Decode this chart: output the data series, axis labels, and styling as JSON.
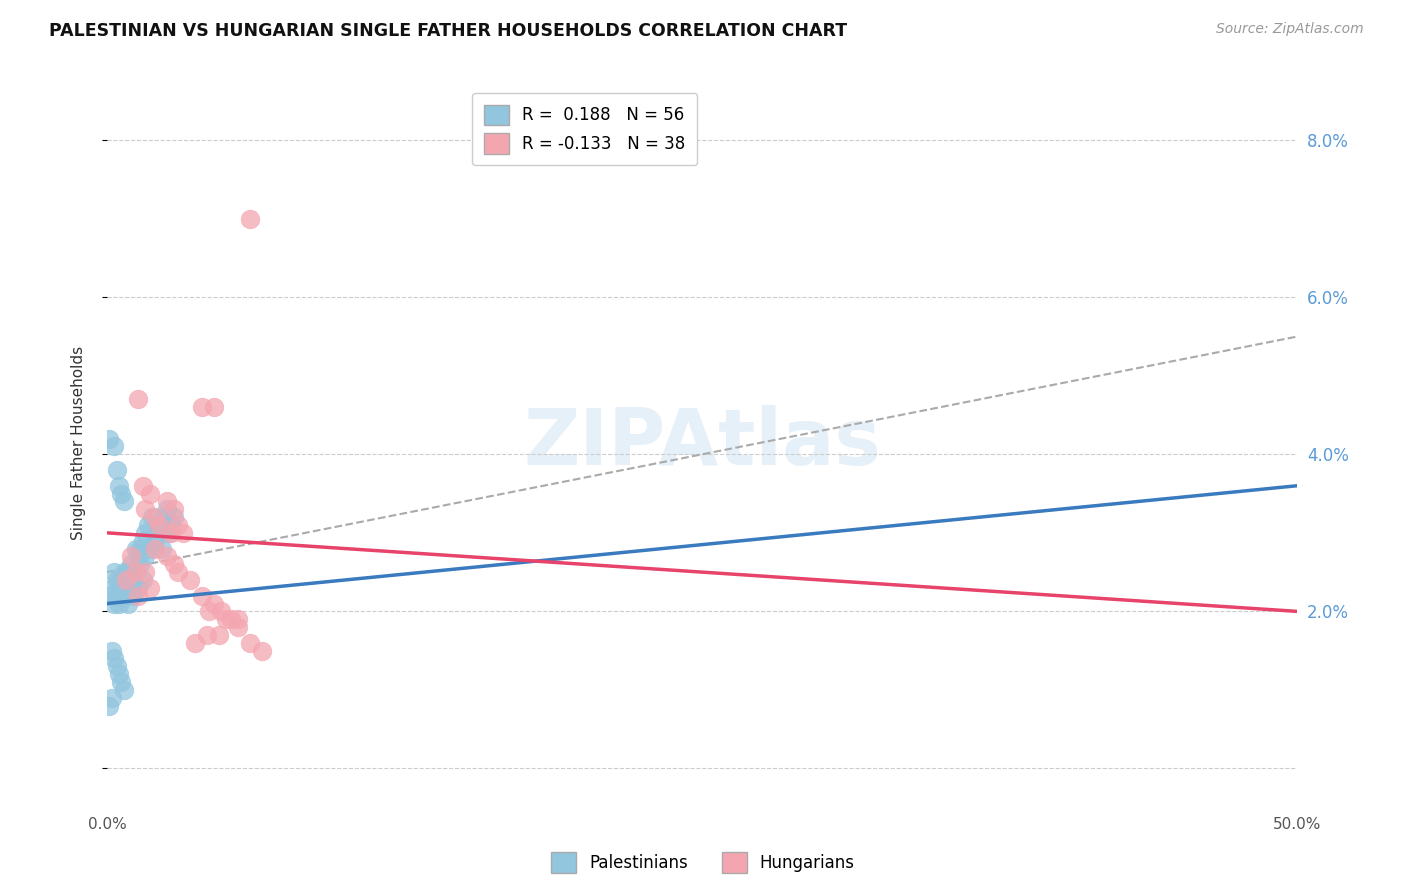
{
  "title": "PALESTINIAN VS HUNGARIAN SINGLE FATHER HOUSEHOLDS CORRELATION CHART",
  "source": "Source: ZipAtlas.com",
  "ylabel": "Single Father Households",
  "y_ticks": [
    0.0,
    0.02,
    0.04,
    0.06,
    0.08
  ],
  "y_tick_labels": [
    "",
    "2.0%",
    "4.0%",
    "6.0%",
    "8.0%"
  ],
  "xlim": [
    0.0,
    0.5
  ],
  "ylim": [
    -0.005,
    0.088
  ],
  "legend_blue_r": "R =  0.188",
  "legend_blue_n": "N = 56",
  "legend_pink_r": "R = -0.133",
  "legend_pink_n": "N = 38",
  "blue_color": "#92c5de",
  "pink_color": "#f4a6b0",
  "blue_line_color": "#3a7abf",
  "pink_line_color": "#e8436a",
  "dashed_line_color": "#aaaaaa",
  "blue_scatter": [
    [
      0.001,
      0.022
    ],
    [
      0.002,
      0.023
    ],
    [
      0.003,
      0.021
    ],
    [
      0.003,
      0.025
    ],
    [
      0.004,
      0.022
    ],
    [
      0.004,
      0.024
    ],
    [
      0.005,
      0.023
    ],
    [
      0.005,
      0.021
    ],
    [
      0.006,
      0.024
    ],
    [
      0.006,
      0.022
    ],
    [
      0.007,
      0.025
    ],
    [
      0.007,
      0.023
    ],
    [
      0.008,
      0.024
    ],
    [
      0.008,
      0.022
    ],
    [
      0.009,
      0.025
    ],
    [
      0.009,
      0.021
    ],
    [
      0.01,
      0.026
    ],
    [
      0.01,
      0.023
    ],
    [
      0.011,
      0.024
    ],
    [
      0.011,
      0.022
    ],
    [
      0.012,
      0.028
    ],
    [
      0.012,
      0.025
    ],
    [
      0.013,
      0.027
    ],
    [
      0.013,
      0.023
    ],
    [
      0.014,
      0.028
    ],
    [
      0.014,
      0.026
    ],
    [
      0.015,
      0.029
    ],
    [
      0.015,
      0.024
    ],
    [
      0.016,
      0.03
    ],
    [
      0.016,
      0.027
    ],
    [
      0.017,
      0.031
    ],
    [
      0.018,
      0.028
    ],
    [
      0.019,
      0.032
    ],
    [
      0.02,
      0.029
    ],
    [
      0.021,
      0.03
    ],
    [
      0.022,
      0.031
    ],
    [
      0.023,
      0.028
    ],
    [
      0.024,
      0.032
    ],
    [
      0.025,
      0.033
    ],
    [
      0.026,
      0.03
    ],
    [
      0.027,
      0.031
    ],
    [
      0.028,
      0.032
    ],
    [
      0.003,
      0.041
    ],
    [
      0.001,
      0.042
    ],
    [
      0.004,
      0.038
    ],
    [
      0.005,
      0.036
    ],
    [
      0.006,
      0.035
    ],
    [
      0.007,
      0.034
    ],
    [
      0.002,
      0.015
    ],
    [
      0.003,
      0.014
    ],
    [
      0.004,
      0.013
    ],
    [
      0.005,
      0.012
    ],
    [
      0.006,
      0.011
    ],
    [
      0.007,
      0.01
    ],
    [
      0.001,
      0.008
    ],
    [
      0.002,
      0.009
    ]
  ],
  "pink_scatter": [
    [
      0.01,
      0.027
    ],
    [
      0.012,
      0.025
    ],
    [
      0.015,
      0.036
    ],
    [
      0.016,
      0.033
    ],
    [
      0.018,
      0.035
    ],
    [
      0.02,
      0.032
    ],
    [
      0.022,
      0.031
    ],
    [
      0.025,
      0.034
    ],
    [
      0.027,
      0.03
    ],
    [
      0.028,
      0.033
    ],
    [
      0.03,
      0.031
    ],
    [
      0.032,
      0.03
    ],
    [
      0.013,
      0.047
    ],
    [
      0.045,
      0.046
    ],
    [
      0.06,
      0.07
    ],
    [
      0.04,
      0.046
    ],
    [
      0.02,
      0.028
    ],
    [
      0.025,
      0.027
    ],
    [
      0.028,
      0.026
    ],
    [
      0.03,
      0.025
    ],
    [
      0.035,
      0.024
    ],
    [
      0.04,
      0.022
    ],
    [
      0.045,
      0.021
    ],
    [
      0.05,
      0.019
    ],
    [
      0.055,
      0.018
    ],
    [
      0.008,
      0.024
    ],
    [
      0.013,
      0.022
    ],
    [
      0.016,
      0.025
    ],
    [
      0.018,
      0.023
    ],
    [
      0.043,
      0.02
    ],
    [
      0.055,
      0.019
    ],
    [
      0.042,
      0.017
    ],
    [
      0.06,
      0.016
    ],
    [
      0.065,
      0.015
    ],
    [
      0.037,
      0.016
    ],
    [
      0.047,
      0.017
    ],
    [
      0.048,
      0.02
    ],
    [
      0.052,
      0.019
    ]
  ],
  "blue_regline_x": [
    0.0,
    0.5
  ],
  "blue_regline_y": [
    0.021,
    0.036
  ],
  "pink_regline_x": [
    0.0,
    0.5
  ],
  "pink_regline_y": [
    0.03,
    0.02
  ],
  "dashed_regline_x": [
    0.0,
    0.5
  ],
  "dashed_regline_y": [
    0.025,
    0.055
  ]
}
